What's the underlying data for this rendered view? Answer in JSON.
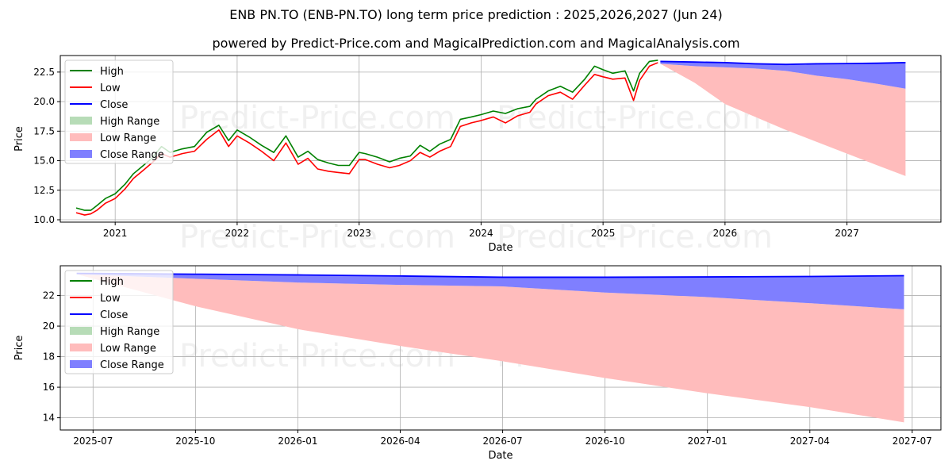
{
  "title": "ENB PN.TO (ENB-PN.TO) long term price prediction : 2025,2026,2027 (Jun 24)",
  "subtitle": "powered by Predict-Price.com and MagicalPrediction.com and MagicalAnalysis.com",
  "watermark": "Predict-Price.com",
  "colors": {
    "high": "#008000",
    "low": "#ff0000",
    "close": "#0000ff",
    "high_range": "#b7dcb7",
    "low_range": "#ffbcbc",
    "close_range": "#7f7fff",
    "grid": "#b0b0b0"
  },
  "legend": [
    {
      "label": "High",
      "kind": "line",
      "color_key": "high"
    },
    {
      "label": "Low",
      "kind": "line",
      "color_key": "low"
    },
    {
      "label": "Close",
      "kind": "line",
      "color_key": "close"
    },
    {
      "label": "High Range",
      "kind": "patch",
      "color_key": "high_range"
    },
    {
      "label": "Low Range",
      "kind": "patch",
      "color_key": "low_range"
    },
    {
      "label": "Close Range",
      "kind": "patch",
      "color_key": "close_range"
    }
  ],
  "chart_data": [
    {
      "type": "line",
      "xlabel": "Date",
      "ylabel": "Price",
      "xlim": [
        2020.55,
        2027.77
      ],
      "ylim": [
        9.8,
        23.9
      ],
      "xticks": [
        {
          "value": 2021,
          "label": "2021"
        },
        {
          "value": 2022,
          "label": "2022"
        },
        {
          "value": 2023,
          "label": "2023"
        },
        {
          "value": 2024,
          "label": "2024"
        },
        {
          "value": 2025,
          "label": "2025"
        },
        {
          "value": 2026,
          "label": "2026"
        },
        {
          "value": 2027,
          "label": "2027"
        }
      ],
      "yticks": [
        {
          "value": 10.0,
          "label": "10.0"
        },
        {
          "value": 12.5,
          "label": "12.5"
        },
        {
          "value": 15.0,
          "label": "15.0"
        },
        {
          "value": 17.5,
          "label": "17.5"
        },
        {
          "value": 20.0,
          "label": "20.0"
        },
        {
          "value": 22.5,
          "label": "22.5"
        }
      ],
      "grid": true,
      "legend_position": "upper-left",
      "history": {
        "x": [
          2020.68,
          2020.75,
          2020.8,
          2020.85,
          2020.92,
          2021.0,
          2021.08,
          2021.15,
          2021.22,
          2021.3,
          2021.38,
          2021.45,
          2021.55,
          2021.65,
          2021.75,
          2021.85,
          2021.93,
          2022.0,
          2022.1,
          2022.2,
          2022.3,
          2022.4,
          2022.5,
          2022.58,
          2022.66,
          2022.75,
          2022.83,
          2022.92,
          2023.0,
          2023.05,
          2023.15,
          2023.25,
          2023.33,
          2023.42,
          2023.5,
          2023.58,
          2023.66,
          2023.75,
          2023.83,
          2023.92,
          2024.0,
          2024.1,
          2024.2,
          2024.3,
          2024.4,
          2024.45,
          2024.55,
          2024.65,
          2024.75,
          2024.85,
          2024.93,
          2025.0,
          2025.08,
          2025.18,
          2025.25,
          2025.3,
          2025.38,
          2025.45
        ],
        "high": [
          11.0,
          10.8,
          10.8,
          11.2,
          11.8,
          12.2,
          13.0,
          13.9,
          14.5,
          15.2,
          16.2,
          15.7,
          16.0,
          16.2,
          17.4,
          18.0,
          16.7,
          17.6,
          17.0,
          16.3,
          15.7,
          17.1,
          15.3,
          15.8,
          15.1,
          14.8,
          14.6,
          14.6,
          15.7,
          15.6,
          15.3,
          14.9,
          15.2,
          15.4,
          16.3,
          15.8,
          16.4,
          16.8,
          18.5,
          18.7,
          18.9,
          19.2,
          19.0,
          19.4,
          19.6,
          20.2,
          20.9,
          21.3,
          20.8,
          21.9,
          23.0,
          22.7,
          22.4,
          22.6,
          20.9,
          22.4,
          23.4,
          23.5
        ],
        "low": [
          10.6,
          10.4,
          10.5,
          10.8,
          11.4,
          11.8,
          12.6,
          13.5,
          14.1,
          14.8,
          15.6,
          15.3,
          15.6,
          15.8,
          16.8,
          17.6,
          16.2,
          17.1,
          16.5,
          15.8,
          15.0,
          16.5,
          14.7,
          15.2,
          14.3,
          14.1,
          14.0,
          13.9,
          15.1,
          15.1,
          14.7,
          14.4,
          14.6,
          15.0,
          15.7,
          15.3,
          15.8,
          16.2,
          17.9,
          18.2,
          18.4,
          18.7,
          18.2,
          18.8,
          19.1,
          19.8,
          20.5,
          20.8,
          20.2,
          21.4,
          22.3,
          22.1,
          21.9,
          22.0,
          20.1,
          21.8,
          23.0,
          23.3
        ]
      },
      "forecast": {
        "x": [
          2025.47,
          2025.75,
          2026.0,
          2026.25,
          2026.5,
          2026.75,
          2027.0,
          2027.25,
          2027.48
        ],
        "close": [
          23.4,
          23.35,
          23.3,
          23.2,
          23.15,
          23.2,
          23.22,
          23.25,
          23.3
        ],
        "close_low": [
          23.2,
          23.0,
          22.9,
          22.8,
          22.6,
          22.2,
          21.9,
          21.5,
          21.1
        ],
        "low_low": [
          23.2,
          21.6,
          19.8,
          18.7,
          17.6,
          16.6,
          15.6,
          14.6,
          13.7
        ]
      }
    },
    {
      "type": "line",
      "xlabel": "Date",
      "ylabel": "Price",
      "xlim": [
        2025.42,
        2027.57
      ],
      "ylim": [
        13.2,
        23.95
      ],
      "xticks": [
        {
          "value": 2025.5,
          "label": "2025-07"
        },
        {
          "value": 2025.75,
          "label": "2025-10"
        },
        {
          "value": 2026.0,
          "label": "2026-01"
        },
        {
          "value": 2026.25,
          "label": "2026-04"
        },
        {
          "value": 2026.5,
          "label": "2026-07"
        },
        {
          "value": 2026.75,
          "label": "2026-10"
        },
        {
          "value": 2027.0,
          "label": "2027-01"
        },
        {
          "value": 2027.25,
          "label": "2027-04"
        },
        {
          "value": 2027.5,
          "label": "2027-07"
        }
      ],
      "yticks": [
        {
          "value": 14,
          "label": "14"
        },
        {
          "value": 16,
          "label": "16"
        },
        {
          "value": 18,
          "label": "18"
        },
        {
          "value": 20,
          "label": "20"
        },
        {
          "value": 22,
          "label": "22"
        }
      ],
      "grid": true,
      "legend_position": "upper-left",
      "forecast": {
        "x": [
          2025.46,
          2025.75,
          2026.0,
          2026.25,
          2026.5,
          2026.75,
          2027.0,
          2027.25,
          2027.48
        ],
        "close": [
          23.45,
          23.4,
          23.35,
          23.28,
          23.2,
          23.2,
          23.22,
          23.25,
          23.3
        ],
        "close_low": [
          23.4,
          23.1,
          22.85,
          22.7,
          22.6,
          22.2,
          21.9,
          21.5,
          21.1
        ],
        "low_low": [
          23.4,
          21.3,
          19.8,
          18.7,
          17.7,
          16.6,
          15.6,
          14.7,
          13.7
        ]
      }
    }
  ]
}
